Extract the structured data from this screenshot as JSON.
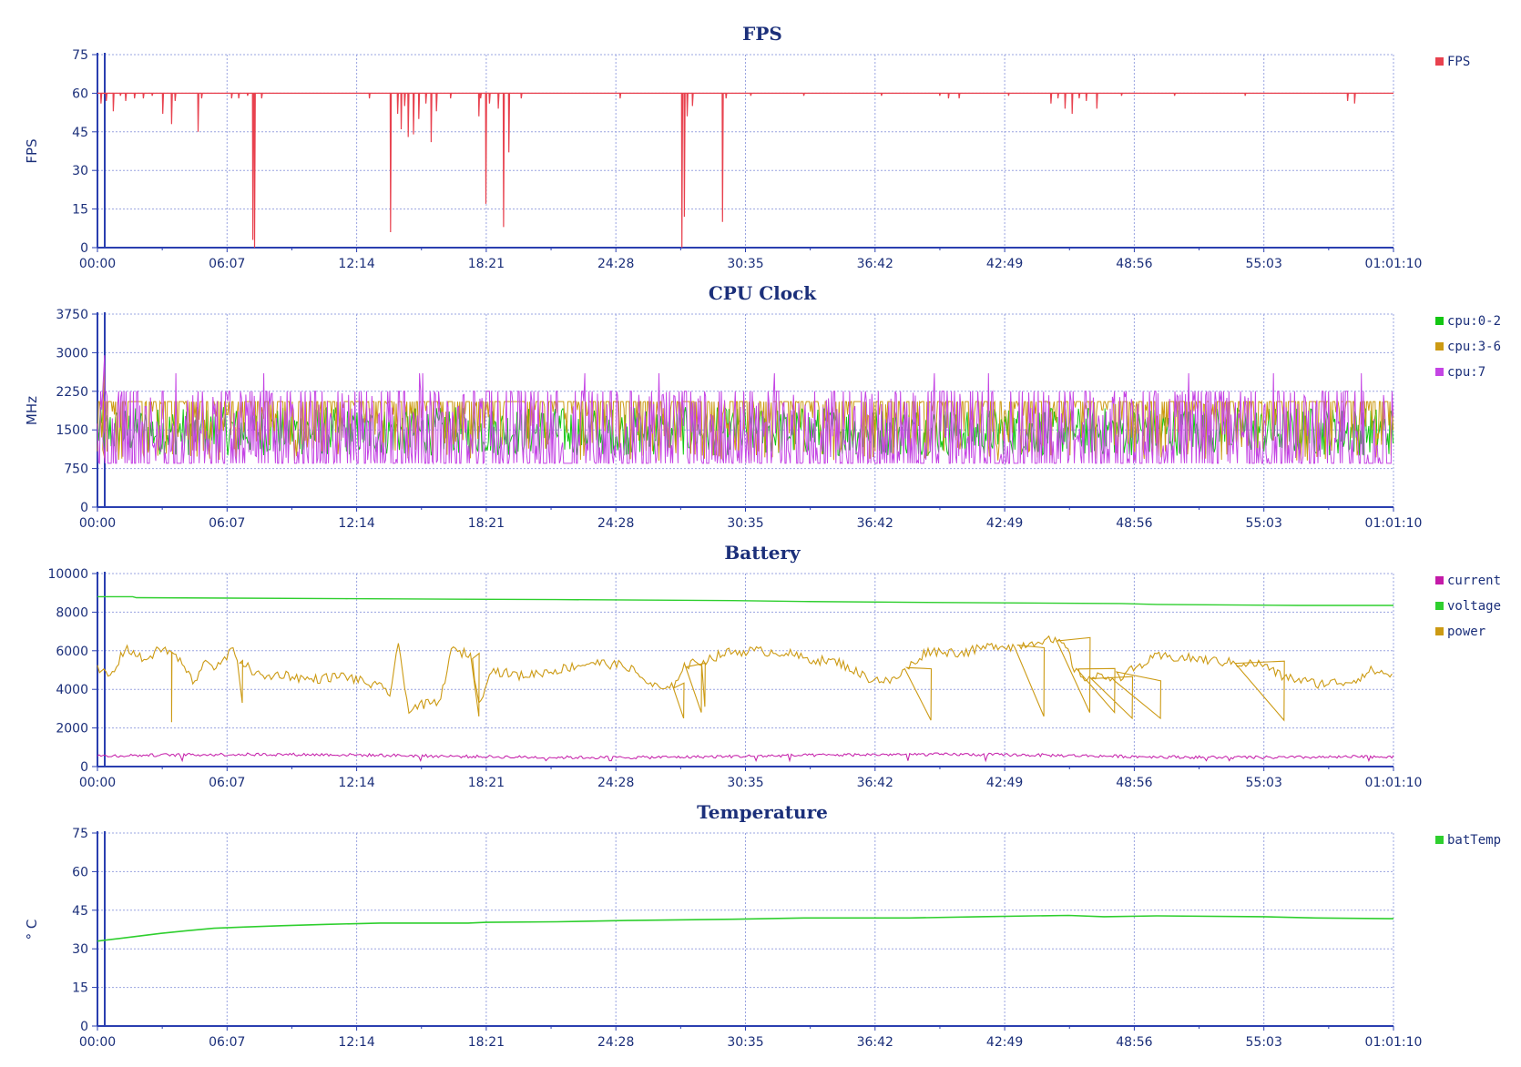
{
  "colors": {
    "fps": "#e8414e",
    "cpu_0_2": "#13c613",
    "cpu_3_6": "#cc9a13",
    "cpu_7": "#c444e4",
    "current": "#c41aa8",
    "voltage": "#2ecf2e",
    "power": "#cc9a13",
    "batTemp": "#2ecf2e",
    "axis": "#2a3fb0",
    "text": "#1b2f7a"
  },
  "x_axis": {
    "tick_labels": [
      "00:00",
      "06:07",
      "12:14",
      "18:21",
      "24:28",
      "30:35",
      "36:42",
      "42:49",
      "48:56",
      "55:03",
      "01:01:10"
    ],
    "range_seconds": [
      0,
      3670
    ]
  },
  "chart_data": [
    {
      "type": "line",
      "title": "FPS",
      "ylabel": "FPS",
      "ylim": [
        0,
        75
      ],
      "yticks": [
        0,
        15,
        30,
        45,
        60,
        75
      ],
      "grid": true,
      "legend_position": "top-right",
      "baseline": 60,
      "series": [
        {
          "name": "FPS",
          "color_key": "fps",
          "dips": [
            [
              10,
              56
            ],
            [
              25,
              57
            ],
            [
              45,
              53
            ],
            [
              65,
              59
            ],
            [
              80,
              57
            ],
            [
              105,
              58
            ],
            [
              130,
              58
            ],
            [
              155,
              59
            ],
            [
              185,
              52
            ],
            [
              210,
              48
            ],
            [
              220,
              57
            ],
            [
              285,
              45
            ],
            [
              295,
              58
            ],
            [
              380,
              58
            ],
            [
              400,
              58
            ],
            [
              425,
              59
            ],
            [
              440,
              3
            ],
            [
              445,
              0
            ],
            [
              465,
              58
            ],
            [
              770,
              58
            ],
            [
              830,
              6
            ],
            [
              850,
              52
            ],
            [
              860,
              46
            ],
            [
              870,
              55
            ],
            [
              880,
              43
            ],
            [
              895,
              44
            ],
            [
              910,
              50
            ],
            [
              930,
              56
            ],
            [
              945,
              41
            ],
            [
              960,
              53
            ],
            [
              1000,
              58
            ],
            [
              1080,
              51
            ],
            [
              1085,
              58
            ],
            [
              1100,
              17
            ],
            [
              1110,
              56
            ],
            [
              1135,
              54
            ],
            [
              1150,
              8
            ],
            [
              1165,
              37
            ],
            [
              1200,
              58
            ],
            [
              1480,
              58
            ],
            [
              1655,
              0
            ],
            [
              1662,
              12
            ],
            [
              1670,
              51
            ],
            [
              1685,
              55
            ],
            [
              1770,
              10
            ],
            [
              1780,
              58
            ],
            [
              1850,
              59
            ],
            [
              2000,
              59
            ],
            [
              2220,
              59
            ],
            [
              2385,
              59
            ],
            [
              2410,
              58
            ],
            [
              2440,
              58
            ],
            [
              2580,
              59
            ],
            [
              2700,
              56
            ],
            [
              2720,
              58
            ],
            [
              2740,
              54
            ],
            [
              2760,
              52
            ],
            [
              2780,
              58
            ],
            [
              2800,
              57
            ],
            [
              2830,
              54
            ],
            [
              2900,
              59
            ],
            [
              3050,
              59
            ],
            [
              3250,
              59
            ],
            [
              3540,
              57
            ],
            [
              3560,
              56
            ]
          ]
        }
      ]
    },
    {
      "type": "line",
      "title": "CPU Clock",
      "ylabel": "MHz",
      "ylim": [
        0,
        3750
      ],
      "yticks": [
        0,
        750,
        1500,
        2250,
        3000,
        3750
      ],
      "grid": true,
      "legend_position": "top-right",
      "series": [
        {
          "name": "cpu:0-2",
          "color_key": "cpu_0_2",
          "approx_range": [
            1000,
            2050
          ]
        },
        {
          "name": "cpu:3-6",
          "color_key": "cpu_3_6",
          "approx_range": [
            900,
            2050
          ],
          "peak": 2750
        },
        {
          "name": "cpu:7",
          "color_key": "cpu_7",
          "approx_range": [
            850,
            2250
          ],
          "peak": 2950
        }
      ]
    },
    {
      "type": "line",
      "title": "Battery",
      "ylabel": "",
      "ylim": [
        0,
        10000
      ],
      "yticks": [
        0,
        2000,
        4000,
        6000,
        8000,
        10000
      ],
      "grid": true,
      "legend_position": "top-right",
      "series": [
        {
          "name": "current",
          "color_key": "current",
          "approx_range": [
            300,
            800
          ]
        },
        {
          "name": "voltage",
          "color_key": "voltage",
          "points": [
            [
              0,
              8800
            ],
            [
              100,
              8800
            ],
            [
              110,
              8750
            ],
            [
              700,
              8700
            ],
            [
              1300,
              8650
            ],
            [
              1800,
              8600
            ],
            [
              2000,
              8550
            ],
            [
              2400,
              8500
            ],
            [
              2900,
              8450
            ],
            [
              3000,
              8400
            ],
            [
              3400,
              8350
            ],
            [
              3670,
              8350
            ]
          ]
        },
        {
          "name": "power",
          "color_key": "power",
          "points": [
            [
              0,
              5000
            ],
            [
              40,
              4700
            ],
            [
              80,
              6200
            ],
            [
              130,
              5500
            ],
            [
              180,
              6100
            ],
            [
              220,
              5800
            ],
            [
              250,
              5000
            ],
            [
              280,
              4200
            ],
            [
              300,
              5600
            ],
            [
              340,
              5100
            ],
            [
              380,
              6000
            ],
            [
              420,
              5200
            ],
            [
              470,
              4600
            ],
            [
              520,
              4800
            ],
            [
              600,
              4500
            ],
            [
              700,
              4700
            ],
            [
              800,
              4100
            ],
            [
              830,
              3800
            ],
            [
              850,
              6400
            ],
            [
              880,
              3000
            ],
            [
              920,
              3200
            ],
            [
              970,
              3300
            ],
            [
              1000,
              6000
            ],
            [
              1060,
              5800
            ],
            [
              1080,
              3100
            ],
            [
              1110,
              5000
            ],
            [
              1200,
              4700
            ],
            [
              1300,
              5000
            ],
            [
              1400,
              5400
            ],
            [
              1500,
              5200
            ],
            [
              1570,
              4200
            ],
            [
              1620,
              3900
            ],
            [
              1660,
              5200
            ],
            [
              1720,
              5500
            ],
            [
              1780,
              5900
            ],
            [
              1850,
              6000
            ],
            [
              1950,
              5900
            ],
            [
              2000,
              5600
            ],
            [
              2100,
              5400
            ],
            [
              2180,
              4600
            ],
            [
              2250,
              4400
            ],
            [
              2300,
              5200
            ],
            [
              2350,
              6000
            ],
            [
              2450,
              5900
            ],
            [
              2550,
              6300
            ],
            [
              2600,
              6200
            ],
            [
              2680,
              6600
            ],
            [
              2740,
              6300
            ],
            [
              2770,
              4900
            ],
            [
              2800,
              4600
            ],
            [
              2900,
              4700
            ],
            [
              3000,
              5700
            ],
            [
              3100,
              5600
            ],
            [
              3200,
              5400
            ],
            [
              3300,
              5300
            ],
            [
              3350,
              4700
            ],
            [
              3450,
              4300
            ],
            [
              3550,
              4400
            ],
            [
              3610,
              5000
            ],
            [
              3670,
              4700
            ]
          ],
          "dips": [
            [
              210,
              2300
            ],
            [
              410,
              3300
            ],
            [
              1080,
              2600
            ],
            [
              1660,
              2500
            ],
            [
              1710,
              2800
            ],
            [
              1720,
              3100
            ],
            [
              2360,
              2400
            ],
            [
              2680,
              2600
            ],
            [
              2810,
              2800
            ],
            [
              2880,
              2800
            ],
            [
              2930,
              2500
            ],
            [
              3010,
              2500
            ],
            [
              3360,
              2400
            ]
          ]
        }
      ]
    },
    {
      "type": "line",
      "title": "Temperature",
      "ylabel": "° C",
      "ylim": [
        0,
        75
      ],
      "yticks": [
        0,
        15,
        30,
        45,
        60,
        75
      ],
      "grid": true,
      "legend_position": "top-right",
      "series": [
        {
          "name": "batTemp",
          "color_key": "batTemp",
          "points": [
            [
              0,
              33
            ],
            [
              60,
              34
            ],
            [
              120,
              35
            ],
            [
              180,
              36
            ],
            [
              250,
              37
            ],
            [
              330,
              38
            ],
            [
              420,
              38.5
            ],
            [
              520,
              39
            ],
            [
              650,
              39.5
            ],
            [
              800,
              40
            ],
            [
              1050,
              40
            ],
            [
              1100,
              40.3
            ],
            [
              1300,
              40.5
            ],
            [
              1500,
              41
            ],
            [
              1800,
              41.5
            ],
            [
              2000,
              42
            ],
            [
              2300,
              42
            ],
            [
              2500,
              42.5
            ],
            [
              2650,
              42.8
            ],
            [
              2750,
              43
            ],
            [
              2850,
              42.5
            ],
            [
              3000,
              42.8
            ],
            [
              3300,
              42.5
            ],
            [
              3450,
              42
            ],
            [
              3670,
              41.7
            ]
          ]
        }
      ]
    }
  ]
}
